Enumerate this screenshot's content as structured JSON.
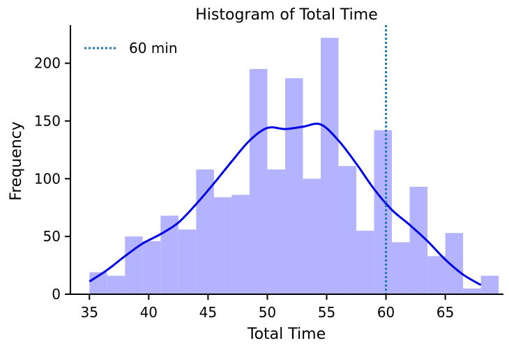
{
  "chart_data": {
    "type": "bar",
    "title": "Histogram of Total Time",
    "xlabel": "Total Time",
    "ylabel": "Frequency",
    "xlim": [
      33.4,
      69.9
    ],
    "ylim": [
      0,
      233
    ],
    "xticks": [
      35,
      40,
      45,
      50,
      55,
      60,
      65
    ],
    "yticks": [
      0,
      50,
      100,
      150,
      200
    ],
    "bins": {
      "start": 35,
      "width": 1.5,
      "counts": [
        19,
        16,
        50,
        46,
        68,
        56,
        108,
        84,
        86,
        195,
        108,
        187,
        100,
        222,
        111,
        55,
        142,
        45,
        93,
        33,
        53,
        5,
        16
      ]
    },
    "bar_color": "#b3b3ff",
    "kde": {
      "color": "#0000e6",
      "x": [
        35,
        36.5,
        38,
        39.5,
        41,
        42.5,
        44,
        45.5,
        47,
        48.5,
        50,
        51.5,
        53,
        54.5,
        56,
        57.5,
        59,
        60.5,
        62,
        63.5,
        65,
        66.5,
        68
      ],
      "y": [
        11,
        21,
        33,
        44,
        52,
        62,
        78,
        96,
        115,
        133,
        144,
        143,
        145,
        147,
        133,
        113,
        91,
        73,
        60,
        46,
        30,
        17,
        8
      ]
    },
    "reference_line": {
      "x": 60,
      "label": "60 min",
      "color": "#1f77b4"
    },
    "legend": {
      "position": "top-left"
    }
  }
}
